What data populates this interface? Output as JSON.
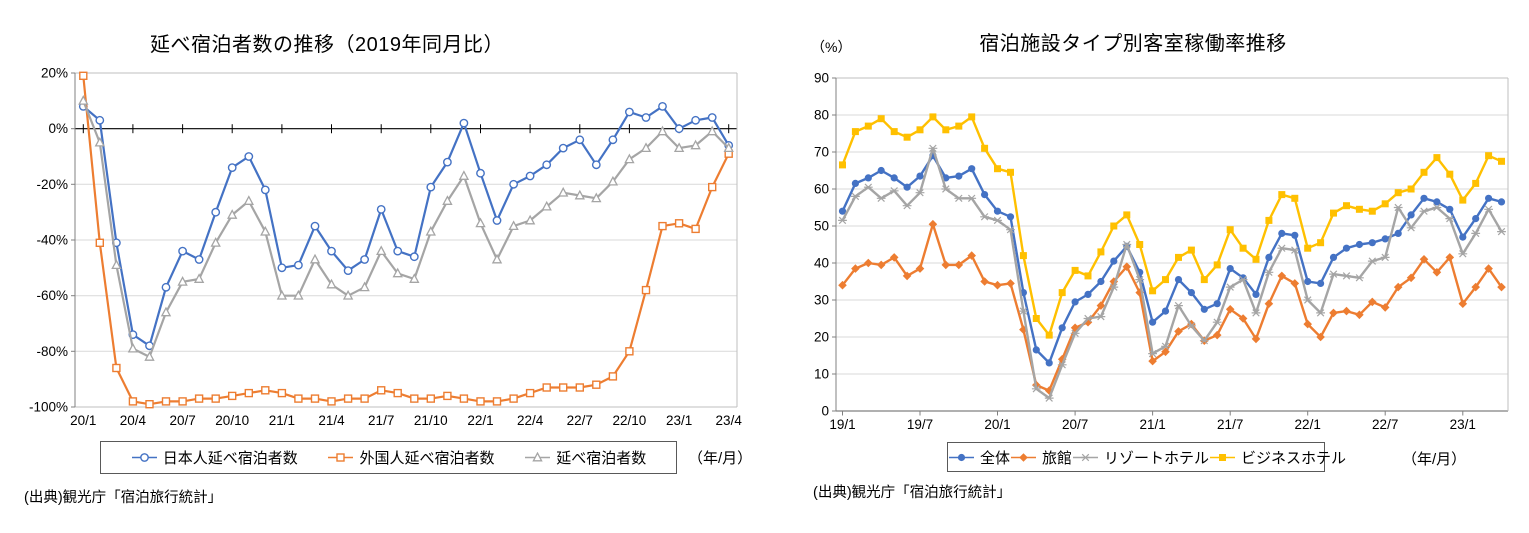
{
  "chart_data": [
    {
      "type": "line",
      "title": "延べ宿泊者数の推移（2019年同月比）",
      "axis_unit_label": "（年/月）",
      "source_note": "(出典)観光庁「宿泊旅行統計」",
      "ylim": [
        -100,
        20
      ],
      "ytick_step": 20,
      "ytick_suffix": "%",
      "grid": true,
      "legend_position": "bottom",
      "x_tick_labels": [
        "20/1",
        "20/4",
        "20/7",
        "20/10",
        "21/1",
        "21/4",
        "21/7",
        "21/10",
        "22/1",
        "22/4",
        "22/7",
        "22/10",
        "23/1",
        "23/4"
      ],
      "x": [
        "20/1",
        "20/2",
        "20/3",
        "20/4",
        "20/5",
        "20/6",
        "20/7",
        "20/8",
        "20/9",
        "20/10",
        "20/11",
        "20/12",
        "21/1",
        "21/2",
        "21/3",
        "21/4",
        "21/5",
        "21/6",
        "21/7",
        "21/8",
        "21/9",
        "21/10",
        "21/11",
        "21/12",
        "22/1",
        "22/2",
        "22/3",
        "22/4",
        "22/5",
        "22/6",
        "22/7",
        "22/8",
        "22/9",
        "22/10",
        "22/11",
        "22/12",
        "23/1",
        "23/2",
        "23/3",
        "23/4"
      ],
      "series": [
        {
          "name": "日本人延べ宿泊者数",
          "color": "#4472C4",
          "marker": "circle-open",
          "values": [
            8,
            3,
            -41,
            -74,
            -78,
            -57,
            -44,
            -47,
            -30,
            -14,
            -10,
            -22,
            -50,
            -49,
            -35,
            -44,
            -51,
            -47,
            -29,
            -44,
            -46,
            -21,
            -12,
            2,
            -16,
            -33,
            -20,
            -17,
            -13,
            -7,
            -4,
            -13,
            -4,
            6,
            4,
            8,
            0,
            3,
            4,
            -6
          ]
        },
        {
          "name": "外国人延べ宿泊者数",
          "color": "#ED7D31",
          "marker": "square-open",
          "values": [
            19,
            -41,
            -86,
            -98,
            -99,
            -98,
            -98,
            -97,
            -97,
            -96,
            -95,
            -94,
            -95,
            -97,
            -97,
            -98,
            -97,
            -97,
            -94,
            -95,
            -97,
            -97,
            -96,
            -97,
            -98,
            -98,
            -97,
            -95,
            -93,
            -93,
            -93,
            -92,
            -89,
            -80,
            -58,
            -35,
            -34,
            -36,
            -21,
            -9
          ]
        },
        {
          "name": "延べ宿泊者数",
          "color": "#A5A5A5",
          "marker": "triangle-open",
          "values": [
            10,
            -5,
            -49,
            -79,
            -82,
            -66,
            -55,
            -54,
            -41,
            -31,
            -26,
            -37,
            -60,
            -60,
            -47,
            -56,
            -60,
            -57,
            -44,
            -52,
            -54,
            -37,
            -26,
            -17,
            -34,
            -47,
            -35,
            -33,
            -28,
            -23,
            -24,
            -25,
            -19,
            -11,
            -7,
            -1,
            -7,
            -6,
            -1,
            -7
          ]
        }
      ]
    },
    {
      "type": "line",
      "title": "宿泊施設タイプ別客室稼働率推移",
      "y_unit_label": "（%）",
      "axis_unit_label": "（年/月）",
      "source_note": "(出典)観光庁「宿泊旅行統計」",
      "ylim": [
        0,
        90
      ],
      "ytick_step": 10,
      "ytick_suffix": "",
      "grid": true,
      "legend_position": "bottom",
      "x_tick_labels": [
        "19/1",
        "19/7",
        "20/1",
        "20/7",
        "21/1",
        "21/7",
        "22/1",
        "22/7",
        "23/1"
      ],
      "x": [
        "19/1",
        "19/2",
        "19/3",
        "19/4",
        "19/5",
        "19/6",
        "19/7",
        "19/8",
        "19/9",
        "19/10",
        "19/11",
        "19/12",
        "20/1",
        "20/2",
        "20/3",
        "20/4",
        "20/5",
        "20/6",
        "20/7",
        "20/8",
        "20/9",
        "20/10",
        "20/11",
        "20/12",
        "21/1",
        "21/2",
        "21/3",
        "21/4",
        "21/5",
        "21/6",
        "21/7",
        "21/8",
        "21/9",
        "21/10",
        "21/11",
        "21/12",
        "22/1",
        "22/2",
        "22/3",
        "22/4",
        "22/5",
        "22/6",
        "22/7",
        "22/8",
        "22/9",
        "22/10",
        "22/11",
        "22/12",
        "23/1",
        "23/2",
        "23/3",
        "23/4"
      ],
      "series": [
        {
          "name": "全体",
          "color": "#4472C4",
          "marker": "circle",
          "values": [
            54,
            61.5,
            63,
            65,
            63,
            60.5,
            63.5,
            69,
            63,
            63.5,
            65.5,
            58.5,
            54,
            52.5,
            32,
            16.5,
            13,
            22.5,
            29.5,
            31.5,
            35,
            40.5,
            44.5,
            37.5,
            24,
            27,
            35.5,
            32,
            27.5,
            29,
            38.5,
            36,
            31.5,
            41.5,
            48,
            47.5,
            35,
            34.5,
            41.5,
            44,
            45,
            45.5,
            46.5,
            48,
            53,
            57.5,
            56.5,
            54.5,
            47,
            52,
            57.5,
            56.5
          ]
        },
        {
          "name": "旅館",
          "color": "#ED7D31",
          "marker": "diamond",
          "values": [
            34,
            38.5,
            40,
            39.5,
            41.5,
            36.5,
            38.5,
            50.5,
            39.5,
            39.5,
            42,
            35,
            34,
            34.5,
            22,
            7,
            5.5,
            14,
            22.5,
            24,
            28.5,
            35,
            39,
            32,
            13.5,
            16,
            21.5,
            23.5,
            19,
            20.5,
            27.5,
            25,
            19.5,
            29,
            36.5,
            34.5,
            23.5,
            20,
            26.5,
            27,
            26,
            29.5,
            28,
            33.5,
            36,
            41,
            37.5,
            41.5,
            29,
            33.5,
            38.5,
            33.5
          ]
        },
        {
          "name": "リゾートホテル",
          "color": "#A5A5A5",
          "marker": "asterisk",
          "values": [
            51.5,
            58,
            60.5,
            57.5,
            59.5,
            55.5,
            59,
            71,
            60,
            57.5,
            57.5,
            52.5,
            51.5,
            49,
            27,
            6,
            3.5,
            12.5,
            21,
            25,
            25.5,
            33.5,
            45,
            35.5,
            15.5,
            17.5,
            28.5,
            23,
            19,
            24,
            33.5,
            35.5,
            26.5,
            37.5,
            44,
            43.5,
            30,
            26.5,
            37,
            36.5,
            36,
            40.5,
            41.5,
            55,
            49.5,
            54,
            55,
            52,
            42.5,
            48,
            54.5,
            48.5
          ]
        },
        {
          "name": "ビジネスホテル",
          "color": "#FFC000",
          "marker": "square",
          "values": [
            66.5,
            75.5,
            77,
            79,
            75.5,
            74,
            76,
            79.5,
            76,
            77,
            79.5,
            71,
            65.5,
            64.5,
            42,
            25,
            20.5,
            32,
            38,
            36.5,
            43,
            50,
            53,
            45,
            32.5,
            35.5,
            41.5,
            43.5,
            35.5,
            39.5,
            49,
            44,
            41,
            51.5,
            58.5,
            57.5,
            44,
            45.5,
            53.5,
            55.5,
            54.5,
            54,
            56,
            59,
            60,
            64.5,
            68.5,
            64,
            57,
            61.5,
            69,
            67.5
          ]
        }
      ]
    }
  ]
}
